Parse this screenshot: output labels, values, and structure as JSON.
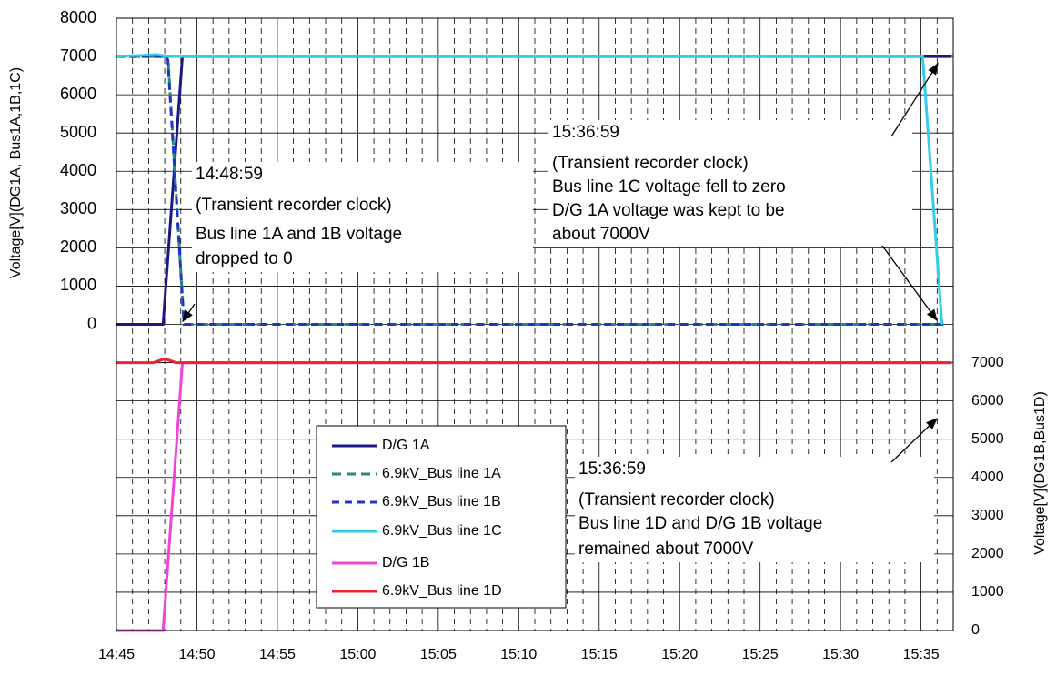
{
  "chart_data": {
    "type": "line",
    "y_label": "Voltage[V](DG1A, Bus1A,1B,1C)",
    "y2_label": "Voltage[V](DG1B,Bus1D)",
    "xlim": [
      885,
      937
    ],
    "xticks": [
      {
        "value": 885,
        "label": "14:45"
      },
      {
        "value": 890,
        "label": "14:50"
      },
      {
        "value": 895,
        "label": "14:55"
      },
      {
        "value": 900,
        "label": "15:00"
      },
      {
        "value": 905,
        "label": "15:05"
      },
      {
        "value": 910,
        "label": "15:10"
      },
      {
        "value": 915,
        "label": "15:15"
      },
      {
        "value": 920,
        "label": "15:20"
      },
      {
        "value": 925,
        "label": "15:25"
      },
      {
        "value": 930,
        "label": "15:30"
      },
      {
        "value": 935,
        "label": "15:35"
      }
    ],
    "xminorticks": [
      886,
      887,
      888,
      889,
      891,
      892,
      893,
      894,
      896,
      897,
      898,
      899,
      901,
      902,
      903,
      904,
      906,
      907,
      908,
      909,
      911,
      912,
      913,
      914,
      916,
      917,
      918,
      919,
      921,
      922,
      923,
      924,
      926,
      927,
      928,
      929,
      931,
      932,
      933,
      934,
      936
    ],
    "ylim": [
      -8000,
      8000
    ],
    "yticks": [
      0,
      1000,
      2000,
      3000,
      4000,
      5000,
      6000,
      7000,
      8000
    ],
    "y2lim": [
      0,
      16000
    ],
    "y2ticks": [
      0,
      1000,
      2000,
      3000,
      4000,
      5000,
      6000,
      7000
    ],
    "grid": true,
    "series": [
      {
        "name": "D/G 1A",
        "color": "#1a1a80",
        "dash": "none",
        "x": [
          885,
          887.9,
          889.1,
          936.9
        ],
        "values": [
          0,
          0,
          7000,
          7000
        ]
      },
      {
        "name": "6.9kV_Bus line 1A",
        "color": "#1f8c7a",
        "dash": "10,6",
        "x": [
          885,
          888.2,
          889.2,
          936.4
        ],
        "values": [
          7000,
          7000,
          0,
          0
        ]
      },
      {
        "name": "6.9kV_Bus line 1B",
        "color": "#2233cc",
        "dash": "8,6",
        "x": [
          885,
          888.1,
          888.2,
          889.2,
          936.4
        ],
        "values": [
          7000,
          7000,
          6900,
          0,
          0
        ]
      },
      {
        "name": "6.9kV_Bus line 1C",
        "color": "#33ccee",
        "dash": "none",
        "x": [
          885,
          887.5,
          888.3,
          935.1,
          936.3
        ],
        "values": [
          7000,
          7050,
          7000,
          7000,
          0
        ]
      },
      {
        "name": "D/G 1B",
        "color": "#ee44dd",
        "dash": "none",
        "axis": "y2",
        "x": [
          885,
          887.9,
          889.1,
          936.9
        ],
        "values": [
          0,
          0,
          7000,
          7000
        ]
      },
      {
        "name": "6.9kV_Bus line 1D",
        "color": "#ee2233",
        "dash": "none",
        "axis": "y2",
        "x": [
          885,
          887.3,
          888,
          888.7,
          936.9
        ],
        "values": [
          7000,
          7000,
          7100,
          7000,
          7000
        ]
      }
    ],
    "annotations": [
      {
        "lines": [
          "14:48:59",
          "(Transient recorder clock)",
          "Bus line 1A and 1B voltage",
          "dropped to 0"
        ]
      },
      {
        "lines": [
          "15:36:59",
          "(Transient recorder clock)",
          "Bus line 1C voltage fell to zero",
          "D/G 1A voltage was kept to be",
          "about 7000V"
        ]
      },
      {
        "lines": [
          "15:36:59",
          "(Transient recorder clock)",
          "Bus line 1D and D/G 1B voltage",
          "remained about 7000V"
        ]
      }
    ]
  }
}
